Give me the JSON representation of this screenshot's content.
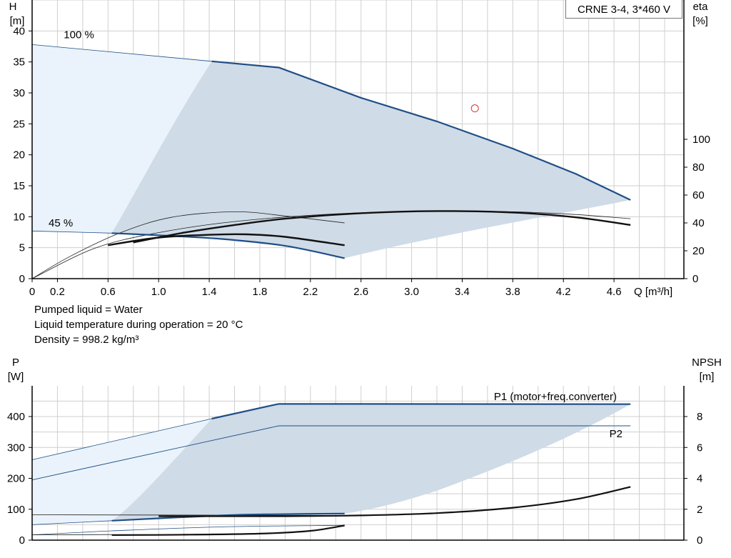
{
  "title_box": "CRNE 3-4, 3*460 V",
  "notes": [
    "Pumped liquid = Water",
    "Liquid temperature during operation = 20 °C",
    "Density = 998.2 kg/m³"
  ],
  "chart_data": [
    {
      "type": "line",
      "name": "head-efficiency",
      "ylabel_left": [
        "H",
        "[m]"
      ],
      "ylabel_right": [
        "eta",
        "[%]"
      ],
      "xlabel": "Q [m³/h]",
      "xlim": [
        0,
        5.0
      ],
      "ylim": [
        0,
        45
      ],
      "y2lim": [
        0,
        100
      ],
      "x_ticks": [
        "0",
        "0.2",
        "0.6",
        "1.0",
        "1.4",
        "1.8",
        "2.2",
        "2.6",
        "3.0",
        "3.4",
        "3.8",
        "4.2",
        "4.6"
      ],
      "x_tick_values": [
        0,
        0.2,
        0.6,
        1.0,
        1.4,
        1.8,
        2.2,
        2.6,
        3.0,
        3.4,
        3.8,
        4.2,
        4.6
      ],
      "y_ticks": [
        0,
        5,
        10,
        15,
        20,
        25,
        30,
        35,
        40
      ],
      "y2_ticks": [
        0,
        20,
        40,
        60,
        80,
        100
      ],
      "grid": true,
      "speed_labels": [
        {
          "text": "100 %",
          "x": 0.25,
          "y": 38.8
        },
        {
          "text": "45 %",
          "x": 0.13,
          "y": 8.4
        }
      ],
      "operating_point": {
        "x": 3.5,
        "y": 27.5
      },
      "series": [
        {
          "id": "h100",
          "points": [
            [
              0,
              37.8
            ],
            [
              1.42,
              35.1
            ],
            [
              1.95,
              34.1
            ],
            [
              2.6,
              29.2
            ],
            [
              3.2,
              25.4
            ],
            [
              3.8,
              21.0
            ],
            [
              4.3,
              16.9
            ],
            [
              4.73,
              12.7
            ]
          ]
        },
        {
          "id": "h45",
          "points": [
            [
              0,
              7.7
            ],
            [
              0.63,
              7.35
            ],
            [
              1.0,
              7.0
            ],
            [
              1.5,
              6.4
            ],
            [
              2.0,
              5.3
            ],
            [
              2.47,
              3.3
            ]
          ]
        },
        {
          "id": "eta100",
          "points": [
            [
              0,
              0
            ],
            [
              0.4,
              17.0
            ],
            [
              0.8,
              26.0
            ],
            [
              1.2,
              33.0
            ],
            [
              1.6,
              38.5
            ],
            [
              2.0,
              43.0
            ],
            [
              2.6,
              47.0
            ],
            [
              3.2,
              48.5
            ],
            [
              3.8,
              47.5
            ],
            [
              4.3,
              44.0
            ],
            [
              4.73,
              38.5
            ]
          ]
        },
        {
          "id": "eta45",
          "points": [
            [
              0,
              0
            ],
            [
              0.3,
              14.0
            ],
            [
              0.6,
              24.0
            ],
            [
              1.0,
              29.5
            ],
            [
              1.4,
              31.5
            ],
            [
              1.7,
              31.8
            ],
            [
              2.0,
              30.0
            ],
            [
              2.47,
              24.0
            ]
          ]
        }
      ],
      "thin_series": [
        {
          "id": "h-thin",
          "points": [
            [
              0,
              37.8
            ],
            [
              1.42,
              35.1
            ]
          ]
        },
        {
          "id": "h45-thin",
          "points": [
            [
              0,
              7.7
            ],
            [
              0.63,
              7.35
            ]
          ]
        },
        {
          "id": "eta-thin-a",
          "points": [
            [
              0,
              0
            ],
            [
              0.3,
              16.0
            ],
            [
              0.7,
              33.0
            ],
            [
              1.1,
              44.0
            ],
            [
              1.6,
              48.0
            ],
            [
              2.0,
              45.0
            ],
            [
              2.47,
              40.0
            ]
          ]
        },
        {
          "id": "eta-thin-b",
          "points": [
            [
              0,
              0
            ],
            [
              0.5,
              22.0
            ],
            [
              1.0,
              33.0
            ],
            [
              1.6,
              41.0
            ],
            [
              2.4,
              46.5
            ],
            [
              3.2,
              48.5
            ],
            [
              3.8,
              48.0
            ],
            [
              4.3,
              46.0
            ],
            [
              4.73,
              43.0
            ]
          ]
        }
      ]
    },
    {
      "type": "line",
      "name": "power-npsh",
      "ylabel_left": [
        "P",
        "[W]"
      ],
      "ylabel_right": [
        "NPSH",
        "[m]"
      ],
      "xlim": [
        0,
        5.0
      ],
      "ylim": [
        0,
        500
      ],
      "y2lim": [
        0,
        10
      ],
      "y_ticks": [
        0,
        100,
        200,
        300,
        400
      ],
      "y2_ticks": [
        0,
        2,
        4,
        6,
        8
      ],
      "grid": true,
      "series": [
        {
          "id": "p1-100",
          "name": "P1 (motor+freq.converter)",
          "points": [
            [
              0,
              260
            ],
            [
              1.42,
              393
            ],
            [
              1.95,
              441
            ],
            [
              4.73,
              440
            ]
          ]
        },
        {
          "id": "p2-100",
          "name": "P2",
          "points": [
            [
              0,
              195
            ],
            [
              1.95,
              370
            ],
            [
              4.73,
              370
            ]
          ]
        },
        {
          "id": "p1-45",
          "points": [
            [
              0,
              50
            ],
            [
              0.63,
              63
            ],
            [
              1.5,
              80
            ],
            [
              1.95,
              84
            ],
            [
              2.47,
              86
            ]
          ]
        },
        {
          "id": "p2-45",
          "points": [
            [
              0,
              17
            ],
            [
              0.63,
              30
            ],
            [
              1.5,
              43
            ],
            [
              2.47,
              48
            ]
          ]
        },
        {
          "id": "npsh100",
          "points": [
            [
              0,
              1.6
            ],
            [
              1.0,
              1.55
            ],
            [
              2.0,
              1.55
            ],
            [
              2.6,
              1.6
            ],
            [
              3.2,
              1.75
            ],
            [
              3.8,
              2.1
            ],
            [
              4.3,
              2.65
            ],
            [
              4.73,
              3.45
            ]
          ]
        },
        {
          "id": "npsh45",
          "points": [
            [
              0.63,
              0.33
            ],
            [
              1.2,
              0.35
            ],
            [
              1.8,
              0.42
            ],
            [
              2.2,
              0.6
            ],
            [
              2.47,
              0.95
            ]
          ]
        }
      ]
    }
  ]
}
